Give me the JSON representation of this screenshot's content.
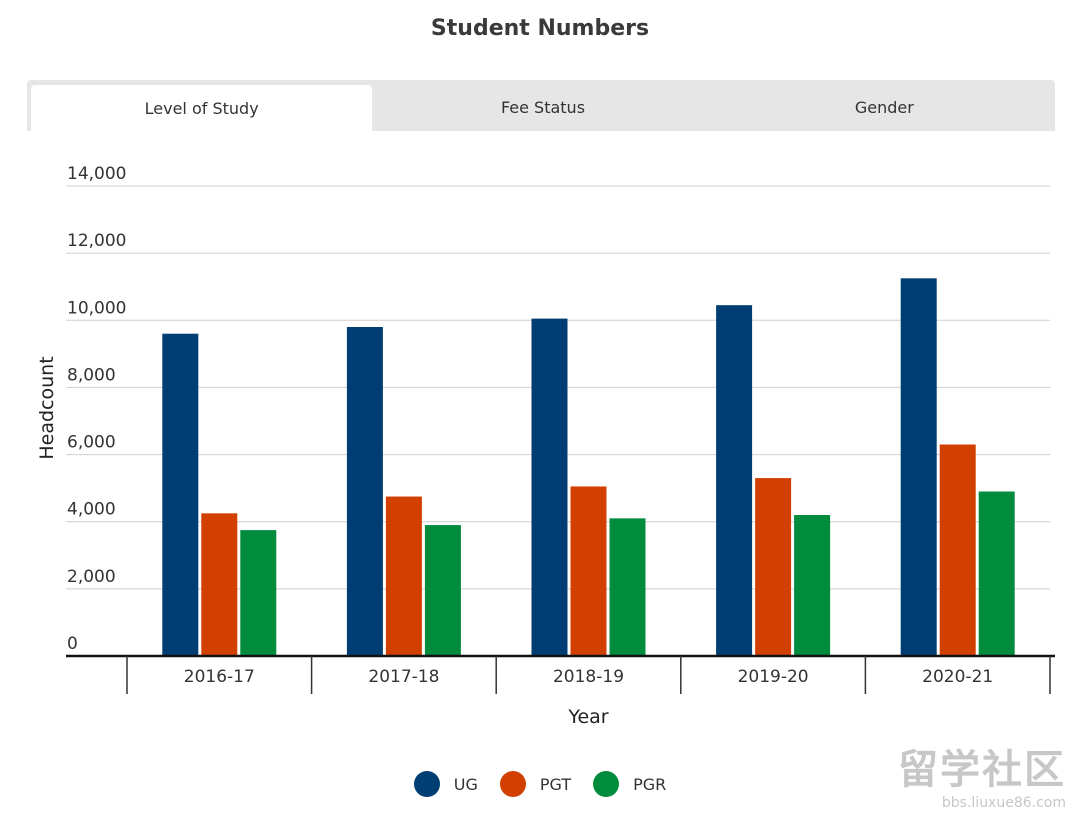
{
  "title": "Student Numbers",
  "tabs": [
    {
      "label": "Level of Study",
      "active": true
    },
    {
      "label": "Fee Status",
      "active": false
    },
    {
      "label": "Gender",
      "active": false
    }
  ],
  "colors": {
    "UG": "#003d73",
    "PGT": "#d14000",
    "PGR": "#008c3c"
  },
  "watermark": {
    "big": "留学社区",
    "small": "bbs.liuxue86.com"
  },
  "chart_data": {
    "type": "bar",
    "title": "Student Numbers",
    "xlabel": "Year",
    "ylabel": "Headcount",
    "categories": [
      "2016-17",
      "2017-18",
      "2018-19",
      "2019-20",
      "2020-21"
    ],
    "series": [
      {
        "name": "UG",
        "values": [
          9600,
          9800,
          10050,
          10450,
          11250
        ]
      },
      {
        "name": "PGT",
        "values": [
          4250,
          4750,
          5050,
          5300,
          6300
        ]
      },
      {
        "name": "PGR",
        "values": [
          3750,
          3900,
          4100,
          4200,
          4900
        ]
      }
    ],
    "ylim": [
      0,
      14000
    ],
    "yticks": [
      0,
      2000,
      4000,
      6000,
      8000,
      10000,
      12000,
      14000
    ],
    "ytick_labels": [
      "0",
      "2,000",
      "4,000",
      "6,000",
      "8,000",
      "10,000",
      "12,000",
      "14,000"
    ],
    "grid": true,
    "legend_position": "bottom"
  }
}
